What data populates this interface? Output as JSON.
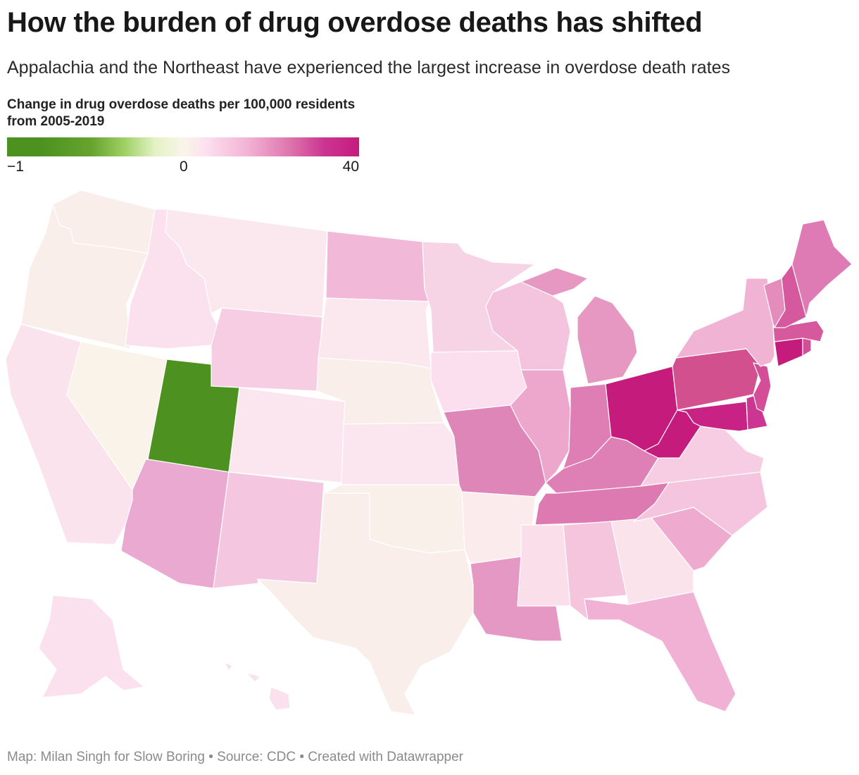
{
  "title": "How the burden of drug overdose deaths has shifted",
  "subtitle": "Appalachia and the Northeast have experienced the largest increase in overdose death rates",
  "legend": {
    "title": "Change in drug overdose deaths per 100,000 residents from 2005-2019",
    "min_label": "−1",
    "mid_label": "0",
    "max_label": "40",
    "colors": {
      "negative": "#4d9221",
      "zero": "#f9f5ea",
      "positive": "#c51b7d"
    }
  },
  "footer": {
    "credit": "Map: Milan Singh for Slow Boring",
    "source": "Source: CDC",
    "tool": "Created with Datawrapper",
    "separator": "•"
  },
  "map_data": {
    "type": "choropleth",
    "states": [
      {
        "name": "WA",
        "color": "#faeeea"
      },
      {
        "name": "OR",
        "color": "#faeeea"
      },
      {
        "name": "CA",
        "color": "#fbe3ed"
      },
      {
        "name": "NV",
        "color": "#f9f3ea"
      },
      {
        "name": "ID",
        "color": "#fbe1ee"
      },
      {
        "name": "MT",
        "color": "#fbe8ee"
      },
      {
        "name": "WY",
        "color": "#f7cde3"
      },
      {
        "name": "UT",
        "color": "#4d9221"
      },
      {
        "name": "AZ",
        "color": "#eaa9d0"
      },
      {
        "name": "CO",
        "color": "#fbe5ee"
      },
      {
        "name": "NM",
        "color": "#f5c6df"
      },
      {
        "name": "ND",
        "color": "#f1b8d8"
      },
      {
        "name": "SD",
        "color": "#fbe7ee"
      },
      {
        "name": "NE",
        "color": "#faeeea"
      },
      {
        "name": "KS",
        "color": "#fbe5ee"
      },
      {
        "name": "OK",
        "color": "#faf0ea"
      },
      {
        "name": "TX",
        "color": "#faeeea"
      },
      {
        "name": "MN",
        "color": "#f7d3e6"
      },
      {
        "name": "IA",
        "color": "#fbdfee"
      },
      {
        "name": "MO",
        "color": "#de86b8"
      },
      {
        "name": "AR",
        "color": "#fbebed"
      },
      {
        "name": "LA",
        "color": "#e598c4"
      },
      {
        "name": "WI",
        "color": "#f4c3de"
      },
      {
        "name": "IL",
        "color": "#eda7cd"
      },
      {
        "name": "MI",
        "color": "#e698c3"
      },
      {
        "name": "IN",
        "color": "#de7eb4"
      },
      {
        "name": "OH",
        "color": "#c51b7d"
      },
      {
        "name": "KY",
        "color": "#de80b5"
      },
      {
        "name": "TN",
        "color": "#dc7ab1"
      },
      {
        "name": "MS",
        "color": "#fadfeb"
      },
      {
        "name": "AL",
        "color": "#f5c5de"
      },
      {
        "name": "GA",
        "color": "#fbe3ec"
      },
      {
        "name": "FL",
        "color": "#f0b1d4"
      },
      {
        "name": "SC",
        "color": "#efabcf"
      },
      {
        "name": "NC",
        "color": "#f5c4de"
      },
      {
        "name": "VA",
        "color": "#f6cde3"
      },
      {
        "name": "WV",
        "color": "#c51b7d"
      },
      {
        "name": "MD",
        "color": "#c82384"
      },
      {
        "name": "DE",
        "color": "#cc3592"
      },
      {
        "name": "PA",
        "color": "#d3508f"
      },
      {
        "name": "NJ",
        "color": "#d44e97"
      },
      {
        "name": "NY",
        "color": "#f0b3d4"
      },
      {
        "name": "CT",
        "color": "#c51b7d"
      },
      {
        "name": "RI",
        "color": "#d24e96"
      },
      {
        "name": "MA",
        "color": "#d6599e"
      },
      {
        "name": "VT",
        "color": "#e48dbc"
      },
      {
        "name": "NH",
        "color": "#d6589d"
      },
      {
        "name": "ME",
        "color": "#de7ab4"
      },
      {
        "name": "AK",
        "color": "#fbe1ee"
      },
      {
        "name": "HI",
        "color": "#fbe1ee"
      }
    ]
  }
}
